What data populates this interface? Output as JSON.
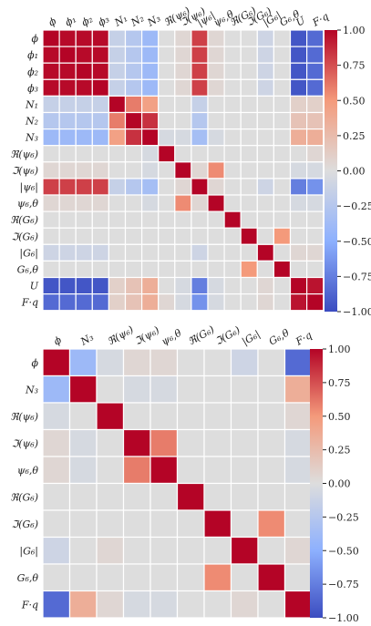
{
  "chart_data": [
    {
      "type": "heatmap",
      "title": "",
      "labels": [
        "ϕ",
        "ϕ₁",
        "ϕ₂",
        "ϕ₃",
        "N₁",
        "N₂",
        "N₃",
        "ℜ(ψ₆)",
        "ℑ(ψ₆)",
        "|ψ₆|",
        "ψ₆,θ",
        "ℜ(G₆)",
        "ℑ(G₆)",
        "|G₆|",
        "G₆,θ",
        "U",
        "F·q"
      ],
      "vmin": -1,
      "vmax": 1,
      "colorbar_ticks": [
        "1.00",
        "0.75",
        "0.50",
        "0.25",
        "0.00",
        "−0.25",
        "−0.50",
        "−0.75",
        "−1.00"
      ],
      "colormap": [
        "#3b4cc0",
        "#dddddd",
        "#b40426"
      ],
      "values": [
        [
          1.0,
          0.98,
          0.98,
          0.98,
          -0.15,
          -0.25,
          -0.4,
          0.0,
          0.05,
          0.8,
          0.05,
          0.0,
          0.0,
          -0.1,
          0.0,
          -0.95,
          -0.85
        ],
        [
          0.98,
          1.0,
          0.98,
          0.98,
          -0.15,
          -0.25,
          -0.4,
          0.0,
          0.05,
          0.8,
          0.05,
          0.0,
          0.0,
          -0.1,
          0.0,
          -0.95,
          -0.85
        ],
        [
          0.98,
          0.98,
          1.0,
          0.98,
          -0.15,
          -0.25,
          -0.4,
          0.0,
          0.05,
          0.8,
          0.05,
          0.0,
          0.0,
          -0.1,
          0.0,
          -0.95,
          -0.85
        ],
        [
          0.98,
          0.98,
          0.98,
          1.0,
          -0.15,
          -0.25,
          -0.4,
          0.0,
          0.05,
          0.8,
          0.05,
          0.0,
          0.0,
          -0.1,
          0.0,
          -0.95,
          -0.85
        ],
        [
          -0.15,
          -0.15,
          -0.15,
          -0.15,
          1.0,
          0.6,
          0.45,
          0.0,
          0.0,
          -0.15,
          0.0,
          0.0,
          0.0,
          0.0,
          0.0,
          0.1,
          0.1
        ],
        [
          -0.25,
          -0.25,
          -0.25,
          -0.25,
          0.6,
          1.0,
          0.85,
          0.0,
          0.0,
          -0.25,
          0.0,
          0.0,
          0.0,
          0.0,
          0.0,
          0.2,
          0.2
        ],
        [
          -0.4,
          -0.4,
          -0.4,
          -0.4,
          0.45,
          0.85,
          1.0,
          -0.05,
          -0.05,
          -0.35,
          -0.05,
          0.0,
          0.0,
          0.0,
          0.0,
          0.35,
          0.35
        ],
        [
          0.0,
          0.0,
          0.0,
          0.0,
          0.0,
          0.0,
          -0.05,
          1.0,
          0.0,
          0.0,
          0.0,
          0.0,
          0.0,
          0.0,
          0.0,
          0.0,
          0.05
        ],
        [
          0.05,
          0.05,
          0.05,
          0.05,
          0.0,
          0.0,
          -0.05,
          0.0,
          1.0,
          0.05,
          0.55,
          0.0,
          0.0,
          0.0,
          0.0,
          -0.05,
          -0.05
        ],
        [
          0.8,
          0.8,
          0.8,
          0.8,
          -0.15,
          -0.25,
          -0.35,
          0.0,
          0.05,
          1.0,
          0.05,
          0.0,
          0.0,
          -0.1,
          0.0,
          -0.75,
          -0.65
        ],
        [
          0.05,
          0.05,
          0.05,
          0.05,
          0.0,
          0.0,
          -0.05,
          0.0,
          0.55,
          0.05,
          1.0,
          0.0,
          0.0,
          0.0,
          0.0,
          -0.05,
          -0.05
        ],
        [
          0.0,
          0.0,
          0.0,
          0.0,
          0.0,
          0.0,
          0.0,
          0.0,
          0.0,
          0.0,
          0.0,
          1.0,
          0.0,
          0.0,
          0.0,
          0.0,
          0.0
        ],
        [
          0.0,
          0.0,
          0.0,
          0.0,
          0.0,
          0.0,
          0.0,
          0.0,
          0.0,
          0.0,
          0.0,
          0.0,
          1.0,
          0.0,
          0.5,
          0.0,
          0.0
        ],
        [
          -0.1,
          -0.1,
          -0.1,
          -0.1,
          0.0,
          0.0,
          0.0,
          0.0,
          0.0,
          -0.1,
          0.0,
          0.0,
          0.0,
          1.0,
          0.0,
          0.05,
          0.05
        ],
        [
          0.0,
          0.0,
          0.0,
          0.0,
          0.0,
          0.0,
          0.0,
          0.0,
          0.0,
          0.0,
          0.0,
          0.0,
          0.5,
          0.0,
          1.0,
          0.0,
          0.0
        ],
        [
          -0.95,
          -0.95,
          -0.95,
          -0.95,
          0.1,
          0.2,
          0.35,
          0.0,
          -0.05,
          -0.75,
          -0.05,
          0.0,
          0.0,
          0.05,
          0.0,
          1.0,
          0.95
        ],
        [
          -0.85,
          -0.85,
          -0.85,
          -0.85,
          0.1,
          0.2,
          0.35,
          0.05,
          -0.05,
          -0.65,
          -0.05,
          0.0,
          0.0,
          0.05,
          0.0,
          0.95,
          1.0
        ]
      ]
    },
    {
      "type": "heatmap",
      "title": "",
      "labels": [
        "ϕ",
        "N₃",
        "ℜ(ψ₆)",
        "ℑ(ψ₆)",
        "ψ₆,θ",
        "ℜ(G₆)",
        "ℑ(G₆)",
        "|G₆|",
        "G₆,θ",
        "F·q"
      ],
      "vmin": -1,
      "vmax": 1,
      "colorbar_ticks": [
        "1.00",
        "0.75",
        "0.50",
        "0.25",
        "0.00",
        "−0.25",
        "−0.50",
        "−0.75",
        "−1.00"
      ],
      "colormap": [
        "#3b4cc0",
        "#dddddd",
        "#b40426"
      ],
      "values": [
        [
          1.0,
          -0.4,
          -0.05,
          0.05,
          0.05,
          0.0,
          0.0,
          -0.1,
          0.0,
          -0.85
        ],
        [
          -0.4,
          1.0,
          0.0,
          -0.05,
          -0.05,
          0.0,
          0.0,
          0.0,
          0.0,
          0.35
        ],
        [
          -0.05,
          0.0,
          1.0,
          0.0,
          0.0,
          0.0,
          0.0,
          0.0,
          0.0,
          0.05
        ],
        [
          0.05,
          -0.05,
          0.0,
          1.0,
          0.6,
          0.0,
          0.0,
          0.0,
          0.0,
          -0.05
        ],
        [
          0.05,
          -0.05,
          0.0,
          0.6,
          1.0,
          0.0,
          0.0,
          0.0,
          0.0,
          -0.05
        ],
        [
          0.0,
          0.0,
          0.0,
          0.0,
          0.0,
          1.0,
          0.0,
          0.0,
          0.0,
          0.0
        ],
        [
          0.0,
          0.0,
          0.0,
          0.0,
          0.0,
          0.0,
          1.0,
          0.0,
          0.55,
          0.0
        ],
        [
          -0.1,
          0.0,
          0.05,
          0.0,
          0.0,
          0.0,
          0.0,
          1.0,
          0.0,
          0.05
        ],
        [
          0.0,
          0.0,
          0.0,
          0.0,
          0.0,
          0.0,
          0.55,
          0.0,
          1.0,
          0.0
        ],
        [
          -0.85,
          0.35,
          0.05,
          -0.05,
          -0.05,
          0.0,
          0.0,
          0.05,
          0.0,
          1.0
        ]
      ]
    }
  ]
}
